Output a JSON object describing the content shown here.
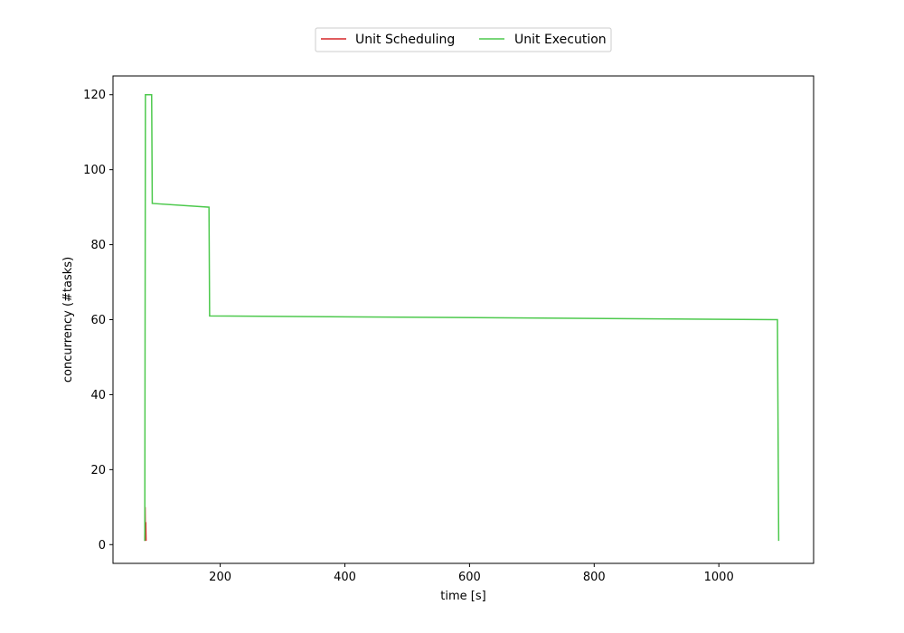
{
  "chart_data": {
    "type": "line",
    "xlabel": "time [s]",
    "ylabel": "concurrency (#tasks)",
    "xlim": [
      28,
      1152
    ],
    "ylim": [
      -5,
      125
    ],
    "xticks": [
      200,
      400,
      600,
      800,
      1000
    ],
    "yticks": [
      0,
      20,
      40,
      60,
      80,
      100,
      120
    ],
    "grid": false,
    "legend_position": "top-center",
    "series": [
      {
        "name": "Unit Scheduling",
        "color": "#d62728",
        "x": [
          79,
          79.5,
          80,
          80.5,
          81
        ],
        "y": [
          1,
          10,
          1,
          6,
          1
        ]
      },
      {
        "name": "Unit Execution",
        "color": "#4dc94d",
        "x": [
          79,
          80,
          90,
          91,
          182,
          183,
          1094,
          1096
        ],
        "y": [
          1,
          120,
          120,
          91,
          90,
          61,
          60,
          1
        ]
      }
    ]
  }
}
